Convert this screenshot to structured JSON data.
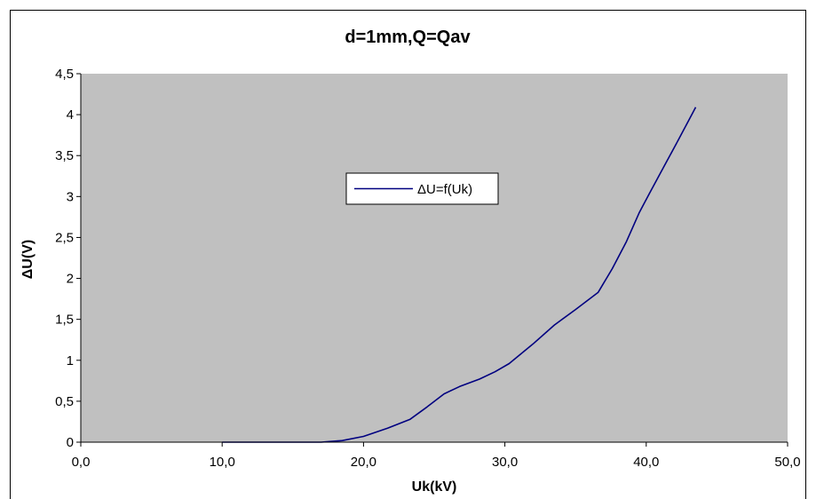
{
  "chart_data": {
    "type": "line",
    "title": "d=1mm,Q=Qav",
    "xlabel": "Uk(kV)",
    "ylabel": "ΔU(V)",
    "xlim": [
      0,
      50
    ],
    "ylim": [
      0,
      4.5
    ],
    "x_ticks": [
      "0,0",
      "10,0",
      "20,0",
      "30,0",
      "40,0",
      "50,0"
    ],
    "y_ticks": [
      "0",
      "0,5",
      "1",
      "1,5",
      "2",
      "2,5",
      "3",
      "3,5",
      "4",
      "4,5"
    ],
    "grid": false,
    "legend_position": "center",
    "plot_background": "#c0c0c0",
    "series": [
      {
        "name": "ΔU=f(Uk)",
        "color": "#000080",
        "x": [
          10.0,
          12.0,
          14.0,
          16.0,
          17.0,
          18.5,
          20.0,
          21.7,
          23.3,
          24.5,
          25.7,
          26.8,
          28.2,
          29.3,
          30.3,
          32.0,
          33.5,
          35.0,
          36.6,
          37.6,
          38.6,
          39.5,
          40.2,
          41.2,
          42.3,
          43.5
        ],
        "y": [
          0.0,
          0.0,
          0.0,
          0.0,
          0.0,
          0.02,
          0.07,
          0.17,
          0.28,
          0.43,
          0.59,
          0.68,
          0.77,
          0.86,
          0.96,
          1.2,
          1.43,
          1.62,
          1.83,
          2.12,
          2.45,
          2.8,
          3.03,
          3.35,
          3.7,
          4.09
        ]
      }
    ]
  }
}
